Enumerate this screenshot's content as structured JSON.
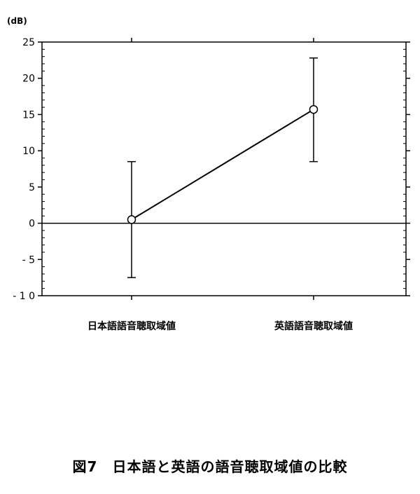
{
  "caption": "図7　日本語と英語の語音聴取域値の比較",
  "chart_data": {
    "type": "line",
    "title": "",
    "ylabel": "(dB)",
    "xlabel": "",
    "categories": [
      "日本語語音聴取域値",
      "英語語音聴取域値"
    ],
    "series": [
      {
        "values": [
          0.5,
          15.7
        ],
        "error_low": [
          -7.5,
          8.5
        ],
        "error_high": [
          8.5,
          22.8
        ]
      }
    ],
    "ylim": [
      -10,
      25
    ],
    "yticks": [
      25,
      20,
      15,
      10,
      5,
      0,
      -5,
      -10
    ],
    "ytick_labels": [
      "25",
      "20",
      "15",
      "10",
      "5",
      "0",
      "- 5",
      "- 1 0"
    ],
    "zero_line": true,
    "grid": false,
    "marker": "open-circle",
    "line_color": "#000000"
  }
}
